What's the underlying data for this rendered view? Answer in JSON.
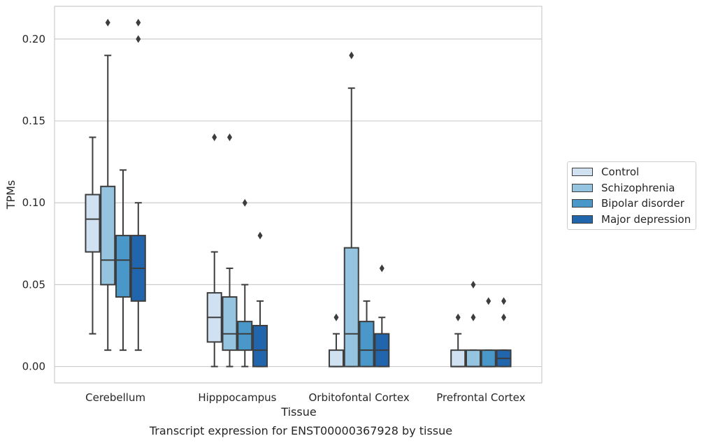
{
  "chart_data": {
    "type": "box",
    "title": "",
    "caption": "Transcript expression for ENST00000367928 by tissue",
    "xlabel": "Tissue",
    "ylabel": "TPMs",
    "ylim": [
      -0.01,
      0.22
    ],
    "yticks": [
      0.0,
      0.05,
      0.1,
      0.15,
      0.2
    ],
    "ytick_labels": [
      "0.00",
      "0.05",
      "0.10",
      "0.15",
      "0.20"
    ],
    "grid": "horizontal",
    "legend_position": "right",
    "categories": [
      "Cerebellum",
      "Hipppocampus",
      "Orbitofontal Cortex",
      "Prefrontal Cortex"
    ],
    "series": [
      {
        "name": "Control",
        "color": "#d0e1f2",
        "boxes": [
          {
            "whislo": 0.02,
            "q1": 0.07,
            "med": 0.09,
            "q3": 0.105,
            "whishi": 0.14,
            "fliers": []
          },
          {
            "whislo": 0.0,
            "q1": 0.015,
            "med": 0.03,
            "q3": 0.045,
            "whishi": 0.07,
            "fliers": [
              0.14
            ]
          },
          {
            "whislo": 0.0,
            "q1": 0.0,
            "med": 0.0,
            "q3": 0.01,
            "whishi": 0.02,
            "fliers": [
              0.03
            ]
          },
          {
            "whislo": 0.0,
            "q1": 0.0,
            "med": 0.0,
            "q3": 0.01,
            "whishi": 0.02,
            "fliers": [
              0.03
            ]
          }
        ]
      },
      {
        "name": "Schizophrenia",
        "color": "#94c4df",
        "boxes": [
          {
            "whislo": 0.01,
            "q1": 0.05,
            "med": 0.065,
            "q3": 0.11,
            "whishi": 0.19,
            "fliers": [
              0.21
            ]
          },
          {
            "whislo": 0.0,
            "q1": 0.01,
            "med": 0.02,
            "q3": 0.0425,
            "whishi": 0.06,
            "fliers": [
              0.14
            ]
          },
          {
            "whislo": 0.0,
            "q1": 0.0,
            "med": 0.02,
            "q3": 0.0725,
            "whishi": 0.17,
            "fliers": [
              0.19
            ]
          },
          {
            "whislo": 0.0,
            "q1": 0.0,
            "med": 0.0,
            "q3": 0.01,
            "whishi": 0.01,
            "fliers": [
              0.03,
              0.05
            ]
          }
        ]
      },
      {
        "name": "Bipolar disorder",
        "color": "#4a98c9",
        "boxes": [
          {
            "whislo": 0.01,
            "q1": 0.0425,
            "med": 0.065,
            "q3": 0.08,
            "whishi": 0.12,
            "fliers": []
          },
          {
            "whislo": 0.0,
            "q1": 0.01,
            "med": 0.02,
            "q3": 0.0275,
            "whishi": 0.05,
            "fliers": [
              0.1
            ]
          },
          {
            "whislo": 0.0,
            "q1": 0.0,
            "med": 0.01,
            "q3": 0.0275,
            "whishi": 0.04,
            "fliers": []
          },
          {
            "whislo": 0.0,
            "q1": 0.0,
            "med": 0.0,
            "q3": 0.01,
            "whishi": 0.01,
            "fliers": [
              0.04
            ]
          }
        ]
      },
      {
        "name": "Major depression",
        "color": "#2166ac",
        "boxes": [
          {
            "whislo": 0.01,
            "q1": 0.04,
            "med": 0.06,
            "q3": 0.08,
            "whishi": 0.1,
            "fliers": [
              0.2,
              0.21
            ]
          },
          {
            "whislo": 0.0,
            "q1": 0.0,
            "med": 0.01,
            "q3": 0.025,
            "whishi": 0.04,
            "fliers": [
              0.08
            ]
          },
          {
            "whislo": 0.0,
            "q1": 0.0,
            "med": 0.01,
            "q3": 0.02,
            "whishi": 0.03,
            "fliers": [
              0.06
            ]
          },
          {
            "whislo": 0.0,
            "q1": 0.0,
            "med": 0.005,
            "q3": 0.01,
            "whishi": 0.01,
            "fliers": [
              0.03,
              0.04
            ]
          }
        ]
      }
    ]
  }
}
